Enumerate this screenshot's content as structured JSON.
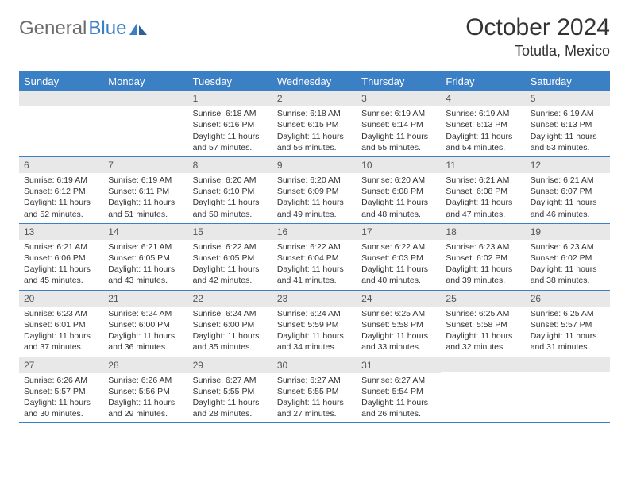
{
  "logo": {
    "part1": "General",
    "part2": "Blue"
  },
  "title": "October 2024",
  "location": "Totutla, Mexico",
  "colors": {
    "header_bg": "#3b7fc4",
    "header_text": "#ffffff",
    "daynum_bg": "#e8e8e8",
    "border": "#3b7fc4",
    "body_text": "#333333",
    "logo_gray": "#6b6b6b",
    "logo_blue": "#3b7fc4"
  },
  "typography": {
    "month_title_size": 30,
    "location_size": 18,
    "weekday_size": 13,
    "daynum_size": 12,
    "body_size": 10.5
  },
  "weekdays": [
    "Sunday",
    "Monday",
    "Tuesday",
    "Wednesday",
    "Thursday",
    "Friday",
    "Saturday"
  ],
  "weeks": [
    [
      null,
      null,
      {
        "n": "1",
        "sr": "Sunrise: 6:18 AM",
        "ss": "Sunset: 6:16 PM",
        "dl1": "Daylight: 11 hours",
        "dl2": "and 57 minutes."
      },
      {
        "n": "2",
        "sr": "Sunrise: 6:18 AM",
        "ss": "Sunset: 6:15 PM",
        "dl1": "Daylight: 11 hours",
        "dl2": "and 56 minutes."
      },
      {
        "n": "3",
        "sr": "Sunrise: 6:19 AM",
        "ss": "Sunset: 6:14 PM",
        "dl1": "Daylight: 11 hours",
        "dl2": "and 55 minutes."
      },
      {
        "n": "4",
        "sr": "Sunrise: 6:19 AM",
        "ss": "Sunset: 6:13 PM",
        "dl1": "Daylight: 11 hours",
        "dl2": "and 54 minutes."
      },
      {
        "n": "5",
        "sr": "Sunrise: 6:19 AM",
        "ss": "Sunset: 6:13 PM",
        "dl1": "Daylight: 11 hours",
        "dl2": "and 53 minutes."
      }
    ],
    [
      {
        "n": "6",
        "sr": "Sunrise: 6:19 AM",
        "ss": "Sunset: 6:12 PM",
        "dl1": "Daylight: 11 hours",
        "dl2": "and 52 minutes."
      },
      {
        "n": "7",
        "sr": "Sunrise: 6:19 AM",
        "ss": "Sunset: 6:11 PM",
        "dl1": "Daylight: 11 hours",
        "dl2": "and 51 minutes."
      },
      {
        "n": "8",
        "sr": "Sunrise: 6:20 AM",
        "ss": "Sunset: 6:10 PM",
        "dl1": "Daylight: 11 hours",
        "dl2": "and 50 minutes."
      },
      {
        "n": "9",
        "sr": "Sunrise: 6:20 AM",
        "ss": "Sunset: 6:09 PM",
        "dl1": "Daylight: 11 hours",
        "dl2": "and 49 minutes."
      },
      {
        "n": "10",
        "sr": "Sunrise: 6:20 AM",
        "ss": "Sunset: 6:08 PM",
        "dl1": "Daylight: 11 hours",
        "dl2": "and 48 minutes."
      },
      {
        "n": "11",
        "sr": "Sunrise: 6:21 AM",
        "ss": "Sunset: 6:08 PM",
        "dl1": "Daylight: 11 hours",
        "dl2": "and 47 minutes."
      },
      {
        "n": "12",
        "sr": "Sunrise: 6:21 AM",
        "ss": "Sunset: 6:07 PM",
        "dl1": "Daylight: 11 hours",
        "dl2": "and 46 minutes."
      }
    ],
    [
      {
        "n": "13",
        "sr": "Sunrise: 6:21 AM",
        "ss": "Sunset: 6:06 PM",
        "dl1": "Daylight: 11 hours",
        "dl2": "and 45 minutes."
      },
      {
        "n": "14",
        "sr": "Sunrise: 6:21 AM",
        "ss": "Sunset: 6:05 PM",
        "dl1": "Daylight: 11 hours",
        "dl2": "and 43 minutes."
      },
      {
        "n": "15",
        "sr": "Sunrise: 6:22 AM",
        "ss": "Sunset: 6:05 PM",
        "dl1": "Daylight: 11 hours",
        "dl2": "and 42 minutes."
      },
      {
        "n": "16",
        "sr": "Sunrise: 6:22 AM",
        "ss": "Sunset: 6:04 PM",
        "dl1": "Daylight: 11 hours",
        "dl2": "and 41 minutes."
      },
      {
        "n": "17",
        "sr": "Sunrise: 6:22 AM",
        "ss": "Sunset: 6:03 PM",
        "dl1": "Daylight: 11 hours",
        "dl2": "and 40 minutes."
      },
      {
        "n": "18",
        "sr": "Sunrise: 6:23 AM",
        "ss": "Sunset: 6:02 PM",
        "dl1": "Daylight: 11 hours",
        "dl2": "and 39 minutes."
      },
      {
        "n": "19",
        "sr": "Sunrise: 6:23 AM",
        "ss": "Sunset: 6:02 PM",
        "dl1": "Daylight: 11 hours",
        "dl2": "and 38 minutes."
      }
    ],
    [
      {
        "n": "20",
        "sr": "Sunrise: 6:23 AM",
        "ss": "Sunset: 6:01 PM",
        "dl1": "Daylight: 11 hours",
        "dl2": "and 37 minutes."
      },
      {
        "n": "21",
        "sr": "Sunrise: 6:24 AM",
        "ss": "Sunset: 6:00 PM",
        "dl1": "Daylight: 11 hours",
        "dl2": "and 36 minutes."
      },
      {
        "n": "22",
        "sr": "Sunrise: 6:24 AM",
        "ss": "Sunset: 6:00 PM",
        "dl1": "Daylight: 11 hours",
        "dl2": "and 35 minutes."
      },
      {
        "n": "23",
        "sr": "Sunrise: 6:24 AM",
        "ss": "Sunset: 5:59 PM",
        "dl1": "Daylight: 11 hours",
        "dl2": "and 34 minutes."
      },
      {
        "n": "24",
        "sr": "Sunrise: 6:25 AM",
        "ss": "Sunset: 5:58 PM",
        "dl1": "Daylight: 11 hours",
        "dl2": "and 33 minutes."
      },
      {
        "n": "25",
        "sr": "Sunrise: 6:25 AM",
        "ss": "Sunset: 5:58 PM",
        "dl1": "Daylight: 11 hours",
        "dl2": "and 32 minutes."
      },
      {
        "n": "26",
        "sr": "Sunrise: 6:25 AM",
        "ss": "Sunset: 5:57 PM",
        "dl1": "Daylight: 11 hours",
        "dl2": "and 31 minutes."
      }
    ],
    [
      {
        "n": "27",
        "sr": "Sunrise: 6:26 AM",
        "ss": "Sunset: 5:57 PM",
        "dl1": "Daylight: 11 hours",
        "dl2": "and 30 minutes."
      },
      {
        "n": "28",
        "sr": "Sunrise: 6:26 AM",
        "ss": "Sunset: 5:56 PM",
        "dl1": "Daylight: 11 hours",
        "dl2": "and 29 minutes."
      },
      {
        "n": "29",
        "sr": "Sunrise: 6:27 AM",
        "ss": "Sunset: 5:55 PM",
        "dl1": "Daylight: 11 hours",
        "dl2": "and 28 minutes."
      },
      {
        "n": "30",
        "sr": "Sunrise: 6:27 AM",
        "ss": "Sunset: 5:55 PM",
        "dl1": "Daylight: 11 hours",
        "dl2": "and 27 minutes."
      },
      {
        "n": "31",
        "sr": "Sunrise: 6:27 AM",
        "ss": "Sunset: 5:54 PM",
        "dl1": "Daylight: 11 hours",
        "dl2": "and 26 minutes."
      },
      null,
      null
    ]
  ]
}
